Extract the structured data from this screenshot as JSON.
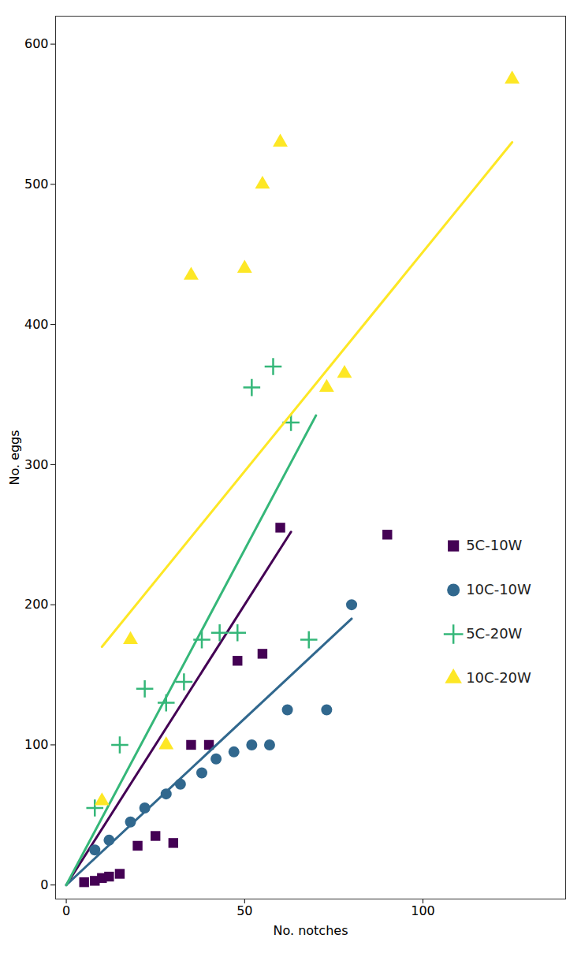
{
  "chart_data": {
    "type": "scatter",
    "xlabel": "No. notches",
    "ylabel": "No. eggs",
    "xlim": [
      -3,
      140
    ],
    "ylim": [
      -10,
      620
    ],
    "xticks": [
      0,
      50,
      100
    ],
    "yticks": [
      0,
      100,
      200,
      300,
      400,
      500,
      600
    ],
    "legend": "lower right",
    "series": [
      {
        "name": "5C-10W",
        "color": "#440154",
        "marker": "square",
        "x": [
          5,
          8,
          10,
          12,
          15,
          20,
          25,
          30,
          35,
          40,
          48,
          55,
          60,
          90
        ],
        "values": [
          2,
          3,
          5,
          6,
          8,
          28,
          35,
          30,
          100,
          100,
          160,
          165,
          255,
          250
        ],
        "fit_x": [
          0,
          63
        ],
        "fit_y": [
          0,
          252
        ]
      },
      {
        "name": "10C-10W",
        "color": "#31688e",
        "marker": "circle",
        "x": [
          8,
          12,
          18,
          22,
          28,
          32,
          38,
          42,
          47,
          52,
          57,
          62,
          73,
          80
        ],
        "values": [
          25,
          32,
          45,
          55,
          65,
          72,
          80,
          90,
          95,
          100,
          100,
          125,
          125,
          200
        ],
        "fit_x": [
          0,
          80
        ],
        "fit_y": [
          0,
          190
        ]
      },
      {
        "name": "5C-20W",
        "color": "#35b779",
        "marker": "plus",
        "x": [
          8,
          15,
          22,
          28,
          33,
          38,
          43,
          48,
          52,
          58,
          63,
          68
        ],
        "values": [
          55,
          100,
          140,
          130,
          145,
          175,
          180,
          180,
          355,
          370,
          330,
          175
        ],
        "fit_x": [
          0,
          70
        ],
        "fit_y": [
          0,
          335
        ]
      },
      {
        "name": "10C-20W",
        "color": "#fde725",
        "marker": "triangle",
        "x": [
          10,
          18,
          28,
          35,
          50,
          55,
          60,
          73,
          78,
          125
        ],
        "values": [
          60,
          175,
          100,
          435,
          440,
          500,
          530,
          355,
          365,
          575
        ],
        "fit_x": [
          10,
          125
        ],
        "fit_y": [
          170,
          530
        ]
      }
    ]
  }
}
